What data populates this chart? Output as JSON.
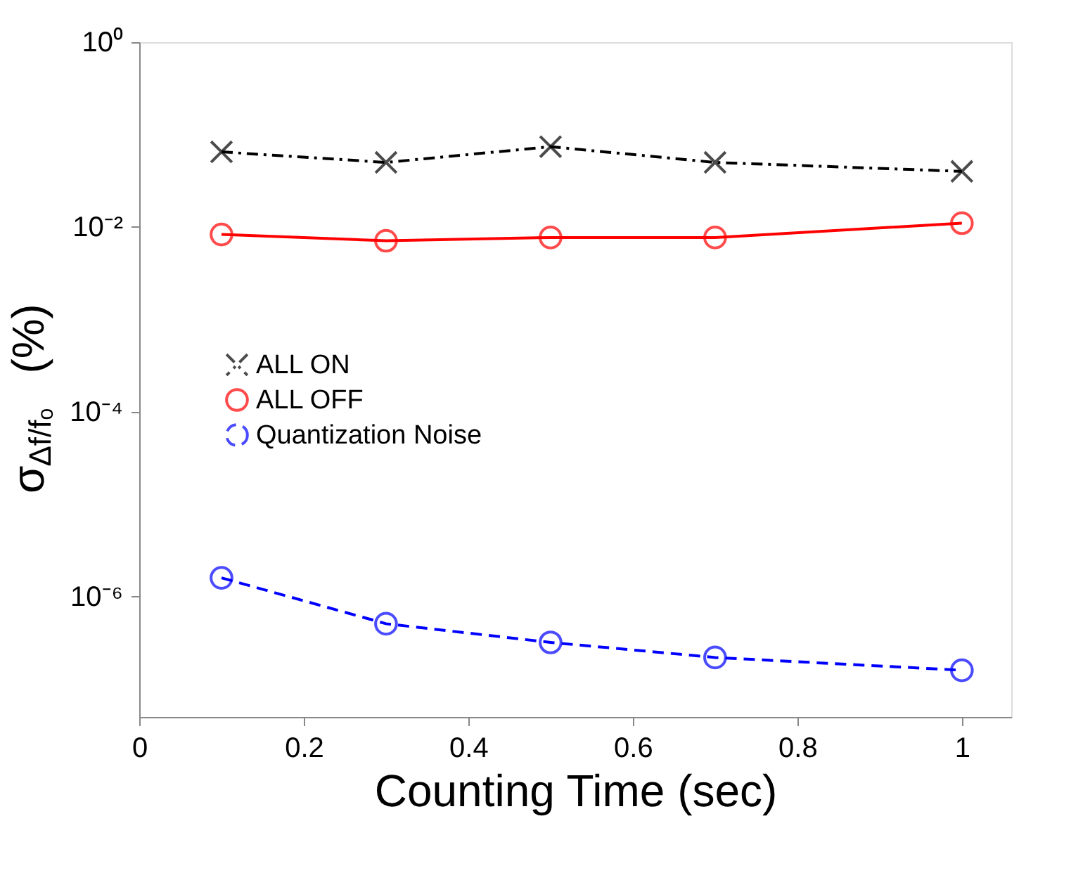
{
  "chart_data": {
    "type": "line",
    "xlabel": "Counting Time (sec)",
    "ylabel": "σ$_{Δf/fₒ}$ (%)",
    "x": [
      0.1,
      0.3,
      0.5,
      0.7,
      1.0
    ],
    "series": [
      {
        "name": "ALL ON",
        "color": "#000000",
        "marker": "cross",
        "line_style": "dashdot",
        "values": [
          0.065,
          0.05,
          0.074,
          0.05,
          0.04
        ]
      },
      {
        "name": "ALL OFF",
        "color": "#ff0000",
        "marker": "circle",
        "line_style": "solid",
        "values": [
          0.0083,
          0.0071,
          0.0077,
          0.0077,
          0.011
        ]
      },
      {
        "name": "Quantization Noise",
        "color": "#0000ff",
        "marker": "circle",
        "line_style": "dashed",
        "values": [
          1.6e-06,
          5.1e-07,
          3.2e-07,
          2.2e-07,
          1.6e-07
        ]
      }
    ],
    "xlim": [
      0,
      1.06
    ],
    "xticks": [
      0,
      0.2,
      0.4,
      0.6,
      0.8,
      1
    ],
    "ylim": [
      5e-08,
      1
    ],
    "yticks": [
      {
        "value": 1,
        "label": "10⁰"
      },
      {
        "value": 0.01,
        "label": "10⁻²"
      },
      {
        "value": 0.0001,
        "label": "10⁻⁴"
      },
      {
        "value": 1e-06,
        "label": "10⁻⁶"
      }
    ],
    "log": true,
    "grid": false,
    "legend": "left"
  }
}
